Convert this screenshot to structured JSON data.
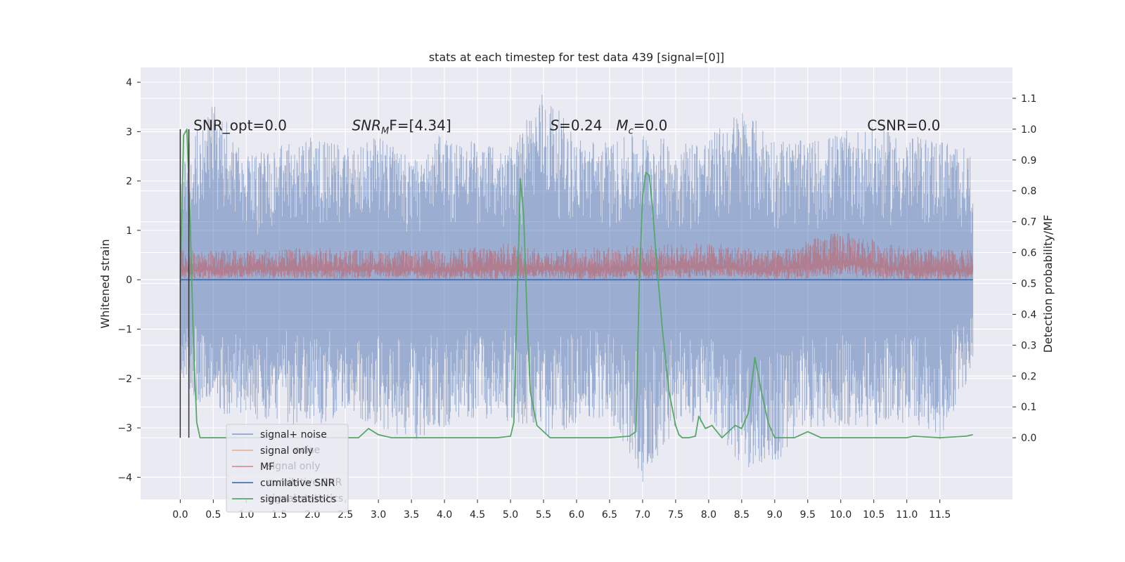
{
  "chart_data": {
    "type": "line",
    "title": "stats at each timestep for test data 439 [signal=[0]]",
    "ylabel": "Whitened strain",
    "y2label": "Detection probability/MF",
    "xlim": [
      -0.6,
      12.6
    ],
    "ylim": [
      -4.45,
      4.3
    ],
    "y2lim": [
      -0.2,
      1.2
    ],
    "x_ticks": [
      0.0,
      0.5,
      1.0,
      1.5,
      2.0,
      2.5,
      3.0,
      3.5,
      4.0,
      4.5,
      5.0,
      5.5,
      6.0,
      6.5,
      7.0,
      7.5,
      8.0,
      8.5,
      9.0,
      9.5,
      10.0,
      10.5,
      11.0,
      11.5
    ],
    "x_tick_labels": [
      "0.0",
      "0.5",
      "1.0",
      "1.5",
      "2.0",
      "2.5",
      "3.0",
      "3.5",
      "4.0",
      "4.5",
      "5.0",
      "5.5",
      "6.0",
      "6.5",
      "7.0",
      "7.5",
      "8.0",
      "8.5",
      "9.0",
      "9.5",
      "10.0",
      "10.5",
      "11.0",
      "11.5"
    ],
    "y_ticks": [
      4,
      3,
      2,
      1,
      0,
      -1,
      -2,
      -3,
      -4
    ],
    "y_tick_labels": [
      "4",
      "3",
      "2",
      "1",
      "0",
      "−1",
      "−2",
      "−3",
      "−4"
    ],
    "y2_ticks": [
      1.1,
      1.0,
      0.9,
      0.8,
      0.7,
      0.6,
      0.5,
      0.4,
      0.3,
      0.2,
      0.1,
      0.0
    ],
    "y2_tick_labels": [
      "1.1",
      "1.0",
      "0.9",
      "0.8",
      "0.7",
      "0.6",
      "0.5",
      "0.4",
      "0.3",
      "0.2",
      "0.1",
      "0.0"
    ],
    "grid": true,
    "background_color": "#eaeaf2",
    "annotations": [
      {
        "text": "SNR_opt=0.0",
        "x": 0.2,
        "y": 3.1
      },
      {
        "text": "SNR",
        "sub": "M",
        "tail": "F=[4.34]",
        "italic": true,
        "x": 2.6,
        "y": 3.1
      },
      {
        "text": "S",
        "tail": "=0.24",
        "italic": true,
        "x": 5.6,
        "y": 3.1
      },
      {
        "text": "M",
        "sub": "c",
        "tail": "=0.0",
        "italic": true,
        "x": 6.6,
        "y": 3.1
      },
      {
        "text": "CSNR=0.0",
        "x": 10.4,
        "y": 3.1
      }
    ],
    "series": [
      {
        "name": "signal+ noise",
        "color": "#4c72b0",
        "opacity": 0.5,
        "axis": "left",
        "envelope": {
          "x": [
            0.0,
            0.5,
            1.0,
            1.5,
            2.0,
            2.5,
            3.0,
            3.5,
            4.0,
            4.5,
            5.0,
            5.5,
            6.0,
            6.5,
            7.0,
            7.5,
            8.0,
            8.5,
            9.0,
            9.5,
            10.0,
            10.5,
            11.0,
            11.5,
            12.0
          ],
          "upper": [
            2.5,
            3.7,
            2.5,
            2.7,
            2.9,
            2.7,
            2.9,
            2.5,
            3.0,
            2.8,
            2.7,
            3.9,
            2.9,
            2.8,
            3.0,
            2.8,
            2.9,
            3.5,
            2.9,
            2.8,
            3.0,
            3.1,
            2.9,
            2.9,
            2.6
          ],
          "lower": [
            -2.3,
            -2.7,
            -2.8,
            -2.9,
            -3.0,
            -2.7,
            -3.0,
            -3.3,
            -3.0,
            -2.8,
            -2.9,
            -3.3,
            -2.9,
            -2.8,
            -4.1,
            -3.0,
            -2.9,
            -3.8,
            -3.8,
            -3.0,
            -3.0,
            -3.0,
            -2.9,
            -3.3,
            -1.8
          ]
        }
      },
      {
        "name": "signal only",
        "color": "#dd8452",
        "axis": "left",
        "x": [
          0.0,
          12.0
        ],
        "y": [
          0.0,
          0.0
        ]
      },
      {
        "name": "MF",
        "color": "#c44e52",
        "opacity": 0.5,
        "axis": "left",
        "envelope": {
          "x": [
            0.0,
            1.0,
            2.0,
            3.0,
            4.0,
            5.0,
            5.5,
            6.0,
            7.0,
            8.0,
            9.0,
            10.0,
            11.0,
            12.0
          ],
          "upper": [
            0.6,
            0.6,
            0.65,
            0.6,
            0.6,
            0.75,
            0.6,
            0.65,
            0.7,
            0.75,
            0.6,
            1.0,
            0.65,
            0.6
          ],
          "lower": [
            0.0,
            0.05,
            0.0,
            0.05,
            0.0,
            0.0,
            0.05,
            0.0,
            0.0,
            0.05,
            0.0,
            0.05,
            0.0,
            0.0
          ]
        }
      },
      {
        "name": "cumilative SNR",
        "color": "#4c72b0",
        "axis": "left",
        "x": [
          0.0,
          12.0
        ],
        "y": [
          0.0,
          0.0
        ]
      },
      {
        "name": "signal statistics",
        "color": "#55a868",
        "axis": "right",
        "x": [
          0.0,
          0.05,
          0.1,
          0.15,
          0.2,
          0.25,
          0.3,
          0.5,
          1.0,
          2.0,
          2.5,
          2.7,
          2.85,
          3.0,
          3.2,
          3.5,
          4.0,
          4.5,
          4.8,
          5.0,
          5.05,
          5.1,
          5.15,
          5.2,
          5.25,
          5.3,
          5.4,
          5.6,
          6.0,
          6.5,
          6.8,
          6.9,
          6.95,
          7.0,
          7.05,
          7.1,
          7.15,
          7.2,
          7.3,
          7.4,
          7.5,
          7.55,
          7.6,
          7.7,
          7.8,
          7.85,
          7.95,
          8.05,
          8.2,
          8.3,
          8.4,
          8.5,
          8.6,
          8.7,
          8.8,
          8.9,
          9.0,
          9.3,
          9.5,
          9.7,
          10.0,
          10.5,
          11.0,
          11.1,
          11.5,
          11.9,
          12.0
        ],
        "y": [
          0.5,
          0.98,
          1.0,
          0.7,
          0.3,
          0.05,
          0.0,
          0.0,
          0.0,
          0.0,
          0.0,
          0.0,
          0.03,
          0.01,
          0.0,
          0.0,
          0.0,
          0.0,
          0.0,
          0.005,
          0.05,
          0.45,
          0.84,
          0.72,
          0.4,
          0.15,
          0.04,
          0.0,
          0.0,
          0.0,
          0.005,
          0.02,
          0.5,
          0.78,
          0.86,
          0.85,
          0.75,
          0.6,
          0.35,
          0.15,
          0.04,
          0.01,
          0.0,
          0.0,
          0.005,
          0.07,
          0.03,
          0.04,
          0.0,
          0.02,
          0.04,
          0.03,
          0.08,
          0.26,
          0.15,
          0.05,
          0.0,
          0.0,
          0.02,
          0.0,
          0.0,
          0.0,
          0.0,
          0.005,
          0.0,
          0.005,
          0.01
        ]
      }
    ],
    "vlines": [
      {
        "x": 0.0,
        "y": [
          -3.2,
          3.05
        ],
        "color": "#333333"
      },
      {
        "x": 0.13,
        "y": [
          -3.2,
          3.05
        ],
        "color": "#333333"
      }
    ],
    "legend": {
      "placement": "lower-left",
      "entries": [
        {
          "label": "signal+ noise",
          "color": "#8fa6cf"
        },
        {
          "label": "signal only",
          "color": "#e6b49a"
        },
        {
          "label": "MF",
          "color": "#d99094"
        },
        {
          "label": "cumilative SNR",
          "color": "#4c72b0"
        },
        {
          "label": "signal statistics",
          "color": "#55a868"
        }
      ],
      "ghost_entries": [
        "noise",
        "signal only",
        "cumilative SNR",
        "signal statistics"
      ]
    }
  }
}
